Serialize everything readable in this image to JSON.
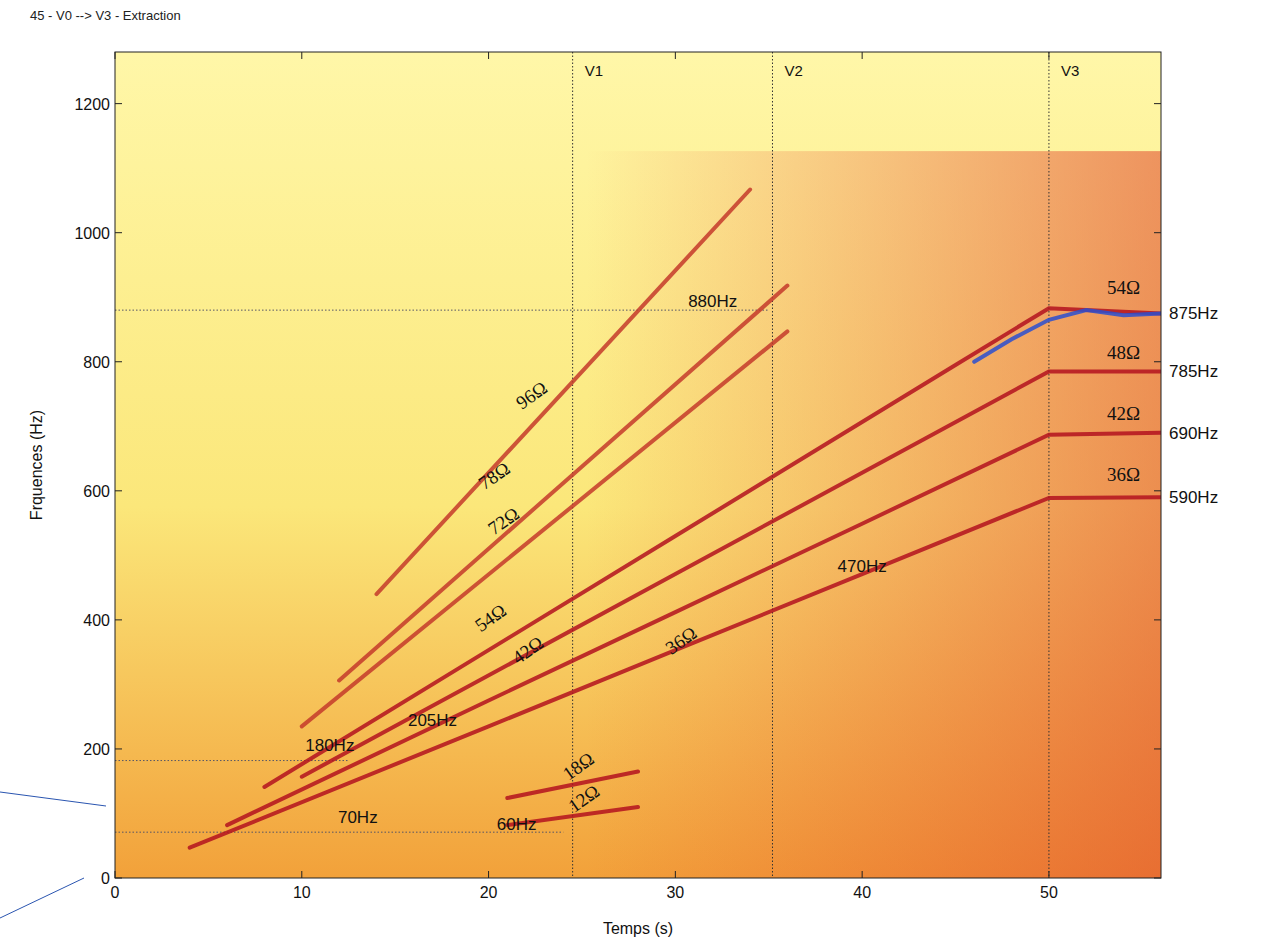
{
  "chart_data": {
    "type": "line",
    "title": "45 - V0 --> V3 - Extraction",
    "x_label": "Temps (s)",
    "y_label": "Frquences (Hz)",
    "xlim": [
      0,
      56
    ],
    "ylim": [
      0,
      1280
    ],
    "xticks": [
      0,
      10,
      20,
      30,
      40,
      50
    ],
    "yticks": [
      0,
      200,
      400,
      600,
      800,
      1000,
      1200
    ],
    "grid": false,
    "series": [
      {
        "color": "#b3121f",
        "x": [
          4,
          20,
          30,
          40,
          50,
          56
        ],
        "values": [
          47,
          235,
          353,
          471,
          589,
          590
        ]
      },
      {
        "color": "#b3121f",
        "x": [
          6,
          20,
          30,
          40,
          50,
          56
        ],
        "values": [
          82,
          275,
          412,
          549,
          687,
          690
        ]
      },
      {
        "color": "#b3121f",
        "x": [
          10,
          30,
          40,
          50,
          56
        ],
        "values": [
          157,
          471,
          628,
          785,
          785
        ]
      },
      {
        "color": "#b3121f",
        "x": [
          8,
          30,
          45,
          50,
          56
        ],
        "values": [
          141,
          530,
          795,
          883,
          875
        ]
      },
      {
        "color": "#c43a2a",
        "x": [
          10,
          36
        ],
        "values": [
          235,
          847
        ]
      },
      {
        "color": "#c43a2a",
        "x": [
          12,
          36
        ],
        "values": [
          306,
          918
        ]
      },
      {
        "color": "#c43a2a",
        "x": [
          14,
          34
        ],
        "values": [
          440,
          1067
        ]
      },
      {
        "color": "#b3121f",
        "x": [
          21,
          28
        ],
        "values": [
          82,
          110
        ]
      },
      {
        "color": "#b3121f",
        "x": [
          21,
          28
        ],
        "values": [
          124,
          165
        ]
      },
      {
        "color": "#2a4fd0",
        "x": [
          46,
          48,
          50,
          52,
          54,
          56
        ],
        "values": [
          800,
          835,
          865,
          880,
          872,
          875
        ]
      }
    ],
    "vlines": [
      {
        "label": "V1",
        "x": 24.5
      },
      {
        "label": "V2",
        "x": 35.2
      },
      {
        "label": "V3",
        "x": 50
      }
    ],
    "hlines": [
      {
        "y": 880,
        "x": [
          0,
          35
        ]
      },
      {
        "y": 182,
        "x": [
          0,
          12.5
        ]
      },
      {
        "y": 71,
        "x": [
          0,
          24
        ]
      }
    ],
    "annotations": [
      {
        "text": "880Hz",
        "x": 32,
        "y": 885
      },
      {
        "text": "470Hz",
        "x": 40,
        "y": 475
      },
      {
        "text": "205Hz",
        "x": 17,
        "y": 235
      },
      {
        "text": "180Hz",
        "x": 11.5,
        "y": 197
      },
      {
        "text": "70Hz",
        "x": 13,
        "y": 85
      },
      {
        "text": "60Hz",
        "x": 21.5,
        "y": 75
      },
      {
        "text": "96Ω",
        "x": 22.5,
        "y": 740
      },
      {
        "text": "78Ω",
        "x": 20.5,
        "y": 615
      },
      {
        "text": "72Ω",
        "x": 21,
        "y": 545
      },
      {
        "text": "54Ω",
        "x": 20.3,
        "y": 395
      },
      {
        "text": "42Ω",
        "x": 22.3,
        "y": 345
      },
      {
        "text": "36Ω",
        "x": 30.5,
        "y": 360
      },
      {
        "text": "18Ω",
        "x": 25,
        "y": 165
      },
      {
        "text": "12Ω",
        "x": 25.3,
        "y": 115
      },
      {
        "text": "54Ω",
        "x": 54,
        "y": 905
      },
      {
        "text": "48Ω",
        "x": 54,
        "y": 805
      },
      {
        "text": "42Ω",
        "x": 54,
        "y": 710
      },
      {
        "text": "36Ω",
        "x": 54,
        "y": 615
      }
    ],
    "right_labels": [
      {
        "text": "875Hz",
        "y": 875
      },
      {
        "text": "785Hz",
        "y": 785
      },
      {
        "text": "690Hz",
        "y": 690
      },
      {
        "text": "590Hz",
        "y": 590
      }
    ]
  }
}
